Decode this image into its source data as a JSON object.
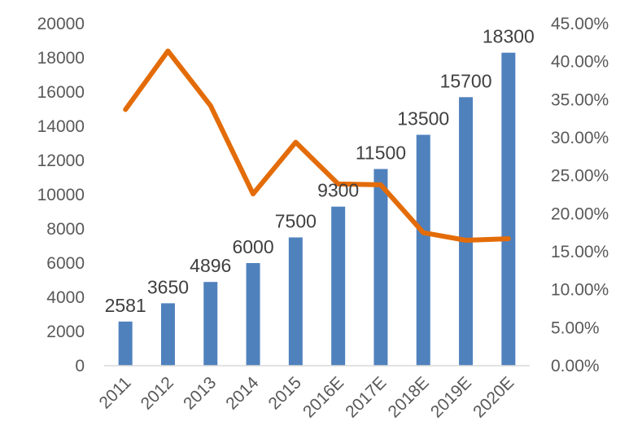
{
  "chart_data": {
    "type": "bar",
    "categories": [
      "2011",
      "2012",
      "2013",
      "2014",
      "2015",
      "2016E",
      "2017E",
      "2018E",
      "2019E",
      "2020E"
    ],
    "series": [
      {
        "type": "bar",
        "axis": "left",
        "color": "#4F81BD",
        "values": [
          2581,
          3650,
          4896,
          6000,
          7500,
          9300,
          11500,
          13500,
          15700,
          18300
        ],
        "data_labels": [
          "2581",
          "3650",
          "4896",
          "6000",
          "7500",
          "9300",
          "11500",
          "13500",
          "15700",
          "18300"
        ]
      },
      {
        "type": "line",
        "axis": "right",
        "color": "#E36C09",
        "values": [
          0.337,
          0.414,
          0.342,
          0.226,
          0.294,
          0.239,
          0.238,
          0.175,
          0.165,
          0.167
        ]
      }
    ],
    "y_left": {
      "lim": [
        0,
        20000
      ],
      "ticks": [
        "0",
        "2000",
        "4000",
        "6000",
        "8000",
        "10000",
        "12000",
        "14000",
        "16000",
        "18000",
        "20000"
      ]
    },
    "y_right": {
      "lim": [
        0,
        0.45
      ],
      "ticks": [
        "0.00%",
        "5.00%",
        "10.00%",
        "15.00%",
        "20.00%",
        "25.00%",
        "30.00%",
        "35.00%",
        "40.00%",
        "45.00%"
      ]
    },
    "legend": "none",
    "grid": false
  }
}
